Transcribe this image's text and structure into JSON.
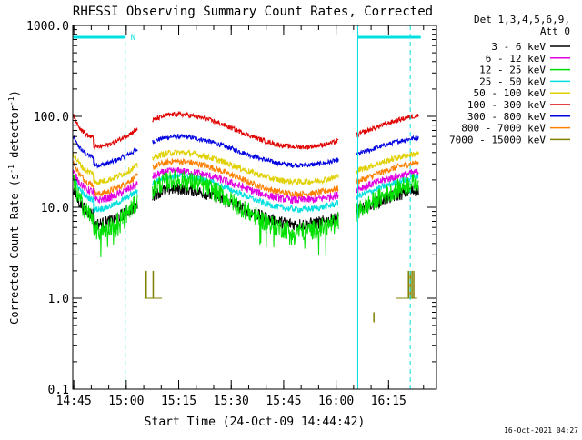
{
  "chart_data": {
    "type": "line",
    "title": "RHESSI Observing Summary Count Rates, Corrected",
    "xlabel": "Start Time (24-Oct-09 14:44:42)",
    "ylabel": "Corrected Count Rate (s",
    "ylabel_sup1": "-1",
    "ylabel_mid": " detector",
    "ylabel_sup2": "-1",
    "ylabel_end": ")",
    "x_ticks": [
      "14:45",
      "15:00",
      "15:15",
      "15:30",
      "15:45",
      "16:00",
      "16:15"
    ],
    "x_tick_minutes": [
      0.3,
      15.3,
      30.3,
      45.3,
      60.3,
      75.3,
      90.3
    ],
    "xlim_minutes": [
      0,
      104
    ],
    "y_scale": "log",
    "ylim": [
      0.1,
      1000
    ],
    "y_ticks": [
      "1000.0",
      "100.0",
      "10.0",
      "1.0",
      "0.1"
    ],
    "y_tick_values": [
      1000,
      100,
      10,
      1,
      0.1
    ],
    "grid": false,
    "legend_header": [
      "Det 1,3,4,5,6,9,",
      "Att 0"
    ],
    "legend_position": "right",
    "series": [
      {
        "name": "3 - 6 keV",
        "color": "#000000",
        "base": 6.5,
        "peak": 16,
        "jitter": 0.16
      },
      {
        "name": "6 - 12 keV",
        "color": "#e000e0",
        "base": 12,
        "peak": 25,
        "jitter": 0.1
      },
      {
        "name": "12 - 25 keV",
        "color": "#00e000",
        "base": 5.5,
        "peak": 20,
        "jitter": 0.25
      },
      {
        "name": "25 - 50 keV",
        "color": "#00e0e0",
        "base": 9.5,
        "peak": 22,
        "jitter": 0.08
      },
      {
        "name": "50 - 100 keV",
        "color": "#e0d000",
        "base": 19,
        "peak": 40,
        "jitter": 0.08
      },
      {
        "name": "100 - 300 keV",
        "color": "#e00000",
        "base": 46,
        "peak": 105,
        "jitter": 0.06
      },
      {
        "name": "300 - 800 keV",
        "color": "#0000e0",
        "base": 29,
        "peak": 60,
        "jitter": 0.06
      },
      {
        "name": "800 - 7000 keV",
        "color": "#ff8000",
        "base": 14,
        "peak": 32,
        "jitter": 0.08
      },
      {
        "name": "7000 - 15000 keV",
        "color": "#808000",
        "base": 0,
        "peak": 0,
        "jitter": 0
      }
    ],
    "peak_minutes": [
      29.5,
      103.5
    ],
    "trough_minutes": [
      6,
      65
    ],
    "gaps_minutes": [
      [
        18.5,
        22.8
      ],
      [
        76.0,
        81.0
      ],
      [
        99.0,
        100.5
      ]
    ],
    "high_energy_spikes": [
      {
        "start": 20.5,
        "end": 25.5,
        "level": 1.0,
        "spikes": [
          {
            "t": 21.0,
            "v": 2.0
          },
          {
            "t": 23.0,
            "v": 2.0
          }
        ]
      },
      {
        "start": 92.5,
        "end": 98.5,
        "level": 1.0,
        "spikes": [
          {
            "t": 96.0,
            "v": 2.0
          },
          {
            "t": 96.5,
            "v": 2.0
          },
          {
            "t": 97.0,
            "v": 2.0
          },
          {
            "t": 97.5,
            "v": 2.0
          }
        ]
      },
      {
        "start": 86.0,
        "end": 86.3,
        "level": 0.55,
        "spikes": [
          {
            "t": 86.1,
            "v": 0.7
          }
        ]
      }
    ],
    "saa_bars_minutes": [
      [
        0,
        14.8
      ],
      [
        81.5,
        99.5
      ]
    ],
    "saa_label": "N",
    "night_markers_minutes": [
      0,
      15,
      81.5,
      96.5
    ],
    "timestamp": "16-Oct-2021 04:27"
  }
}
